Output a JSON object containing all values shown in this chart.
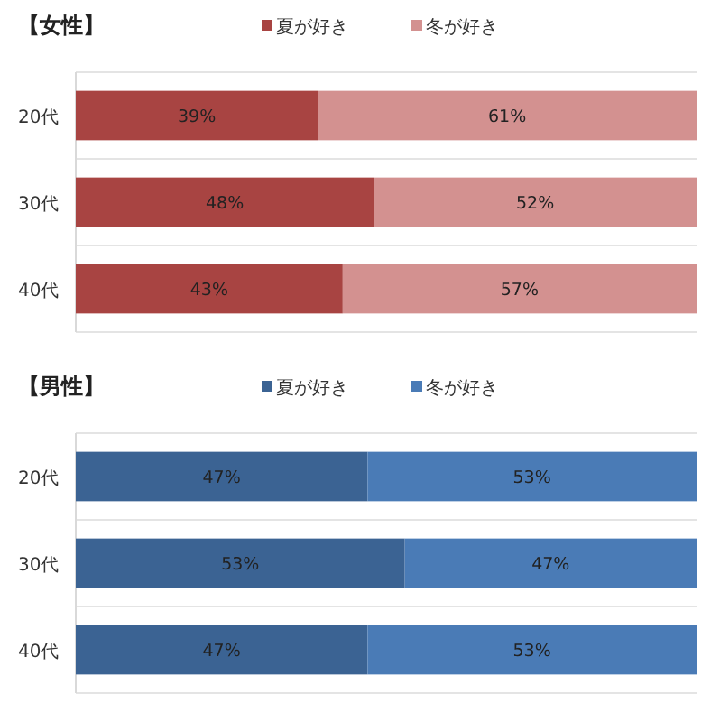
{
  "chart_data": [
    {
      "type": "bar",
      "orientation": "horizontal",
      "stacked": true,
      "title": "【女性】",
      "legend": "top",
      "grid": "y",
      "categories": [
        "20代",
        "30代",
        "40代"
      ],
      "series": [
        {
          "name": "夏が好き",
          "color": "#a84442",
          "values": [
            39,
            48,
            43
          ],
          "value_labels": [
            "39%",
            "48%",
            "43%"
          ]
        },
        {
          "name": "冬が好き",
          "color": "#d39190",
          "values": [
            61,
            52,
            57
          ],
          "value_labels": [
            "61%",
            "52%",
            "57%"
          ]
        }
      ]
    },
    {
      "type": "bar",
      "orientation": "horizontal",
      "stacked": true,
      "title": "【男性】",
      "legend": "top",
      "grid": "y",
      "categories": [
        "20代",
        "30代",
        "40代"
      ],
      "series": [
        {
          "name": "夏が好き",
          "color": "#3b6393",
          "values": [
            47,
            53,
            47
          ],
          "value_labels": [
            "47%",
            "53%",
            "47%"
          ]
        },
        {
          "name": "冬が好き",
          "color": "#4a7bb6",
          "values": [
            53,
            47,
            53
          ],
          "value_labels": [
            "53%",
            "47%",
            "53%"
          ]
        }
      ]
    }
  ]
}
